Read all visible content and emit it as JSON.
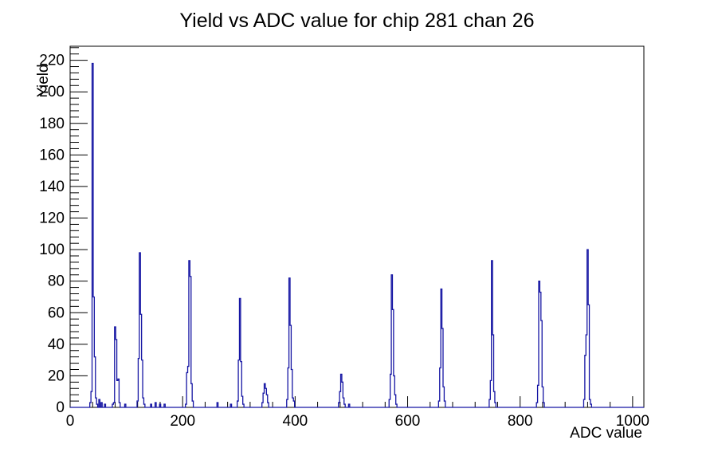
{
  "window": {
    "background_color": "#ffffff"
  },
  "colors": {
    "histogram_line": "#1515a3",
    "axis": "#000000",
    "text": "#000000"
  },
  "chart_data": {
    "type": "bar",
    "subtype": "root-step-histogram",
    "title": "Yield vs ADC value for chip 281 chan 26",
    "xlabel": "ADC value",
    "ylabel": "Yield",
    "xlim": [
      0,
      1020
    ],
    "ylim": [
      0,
      228.9
    ],
    "grid": false,
    "legend": "none",
    "x_major_ticks": [
      0,
      200,
      400,
      600,
      800,
      1000
    ],
    "x_minor_step": 40,
    "y_major_ticks": [
      0,
      20,
      40,
      60,
      80,
      100,
      120,
      140,
      160,
      180,
      200,
      220
    ],
    "y_minor_step": 4,
    "bin_width": 2,
    "bins": [
      [
        36,
        3
      ],
      [
        38,
        10
      ],
      [
        40,
        218
      ],
      [
        42,
        70
      ],
      [
        44,
        32
      ],
      [
        46,
        6
      ],
      [
        48,
        2
      ],
      [
        52,
        5
      ],
      [
        56,
        3
      ],
      [
        62,
        2
      ],
      [
        76,
        2
      ],
      [
        78,
        3
      ],
      [
        80,
        51
      ],
      [
        82,
        43
      ],
      [
        84,
        17
      ],
      [
        86,
        18
      ],
      [
        88,
        3
      ],
      [
        98,
        2
      ],
      [
        120,
        4
      ],
      [
        122,
        31
      ],
      [
        124,
        98
      ],
      [
        126,
        59
      ],
      [
        128,
        30
      ],
      [
        130,
        6
      ],
      [
        132,
        2
      ],
      [
        144,
        2
      ],
      [
        152,
        3
      ],
      [
        160,
        2
      ],
      [
        168,
        2
      ],
      [
        206,
        2
      ],
      [
        208,
        22
      ],
      [
        210,
        26
      ],
      [
        212,
        93
      ],
      [
        214,
        83
      ],
      [
        216,
        15
      ],
      [
        218,
        4
      ],
      [
        262,
        3
      ],
      [
        286,
        2
      ],
      [
        298,
        4
      ],
      [
        300,
        30
      ],
      [
        302,
        69
      ],
      [
        304,
        29
      ],
      [
        306,
        7
      ],
      [
        308,
        2
      ],
      [
        342,
        3
      ],
      [
        344,
        9
      ],
      [
        346,
        15
      ],
      [
        348,
        12
      ],
      [
        350,
        8
      ],
      [
        352,
        3
      ],
      [
        386,
        5
      ],
      [
        388,
        25
      ],
      [
        390,
        82
      ],
      [
        392,
        52
      ],
      [
        394,
        24
      ],
      [
        396,
        6
      ],
      [
        398,
        4
      ],
      [
        478,
        3
      ],
      [
        480,
        10
      ],
      [
        482,
        21
      ],
      [
        484,
        16
      ],
      [
        486,
        6
      ],
      [
        488,
        2
      ],
      [
        496,
        2
      ],
      [
        568,
        5
      ],
      [
        570,
        21
      ],
      [
        572,
        84
      ],
      [
        574,
        62
      ],
      [
        576,
        20
      ],
      [
        578,
        8
      ],
      [
        580,
        2
      ],
      [
        656,
        4
      ],
      [
        658,
        25
      ],
      [
        660,
        75
      ],
      [
        662,
        50
      ],
      [
        664,
        13
      ],
      [
        666,
        4
      ],
      [
        746,
        5
      ],
      [
        748,
        17
      ],
      [
        750,
        93
      ],
      [
        752,
        46
      ],
      [
        754,
        10
      ],
      [
        756,
        3
      ],
      [
        830,
        3
      ],
      [
        832,
        14
      ],
      [
        834,
        80
      ],
      [
        836,
        73
      ],
      [
        838,
        55
      ],
      [
        840,
        13
      ],
      [
        842,
        3
      ],
      [
        914,
        5
      ],
      [
        916,
        33
      ],
      [
        918,
        46
      ],
      [
        920,
        100
      ],
      [
        922,
        65
      ],
      [
        924,
        5
      ],
      [
        926,
        2
      ]
    ]
  }
}
